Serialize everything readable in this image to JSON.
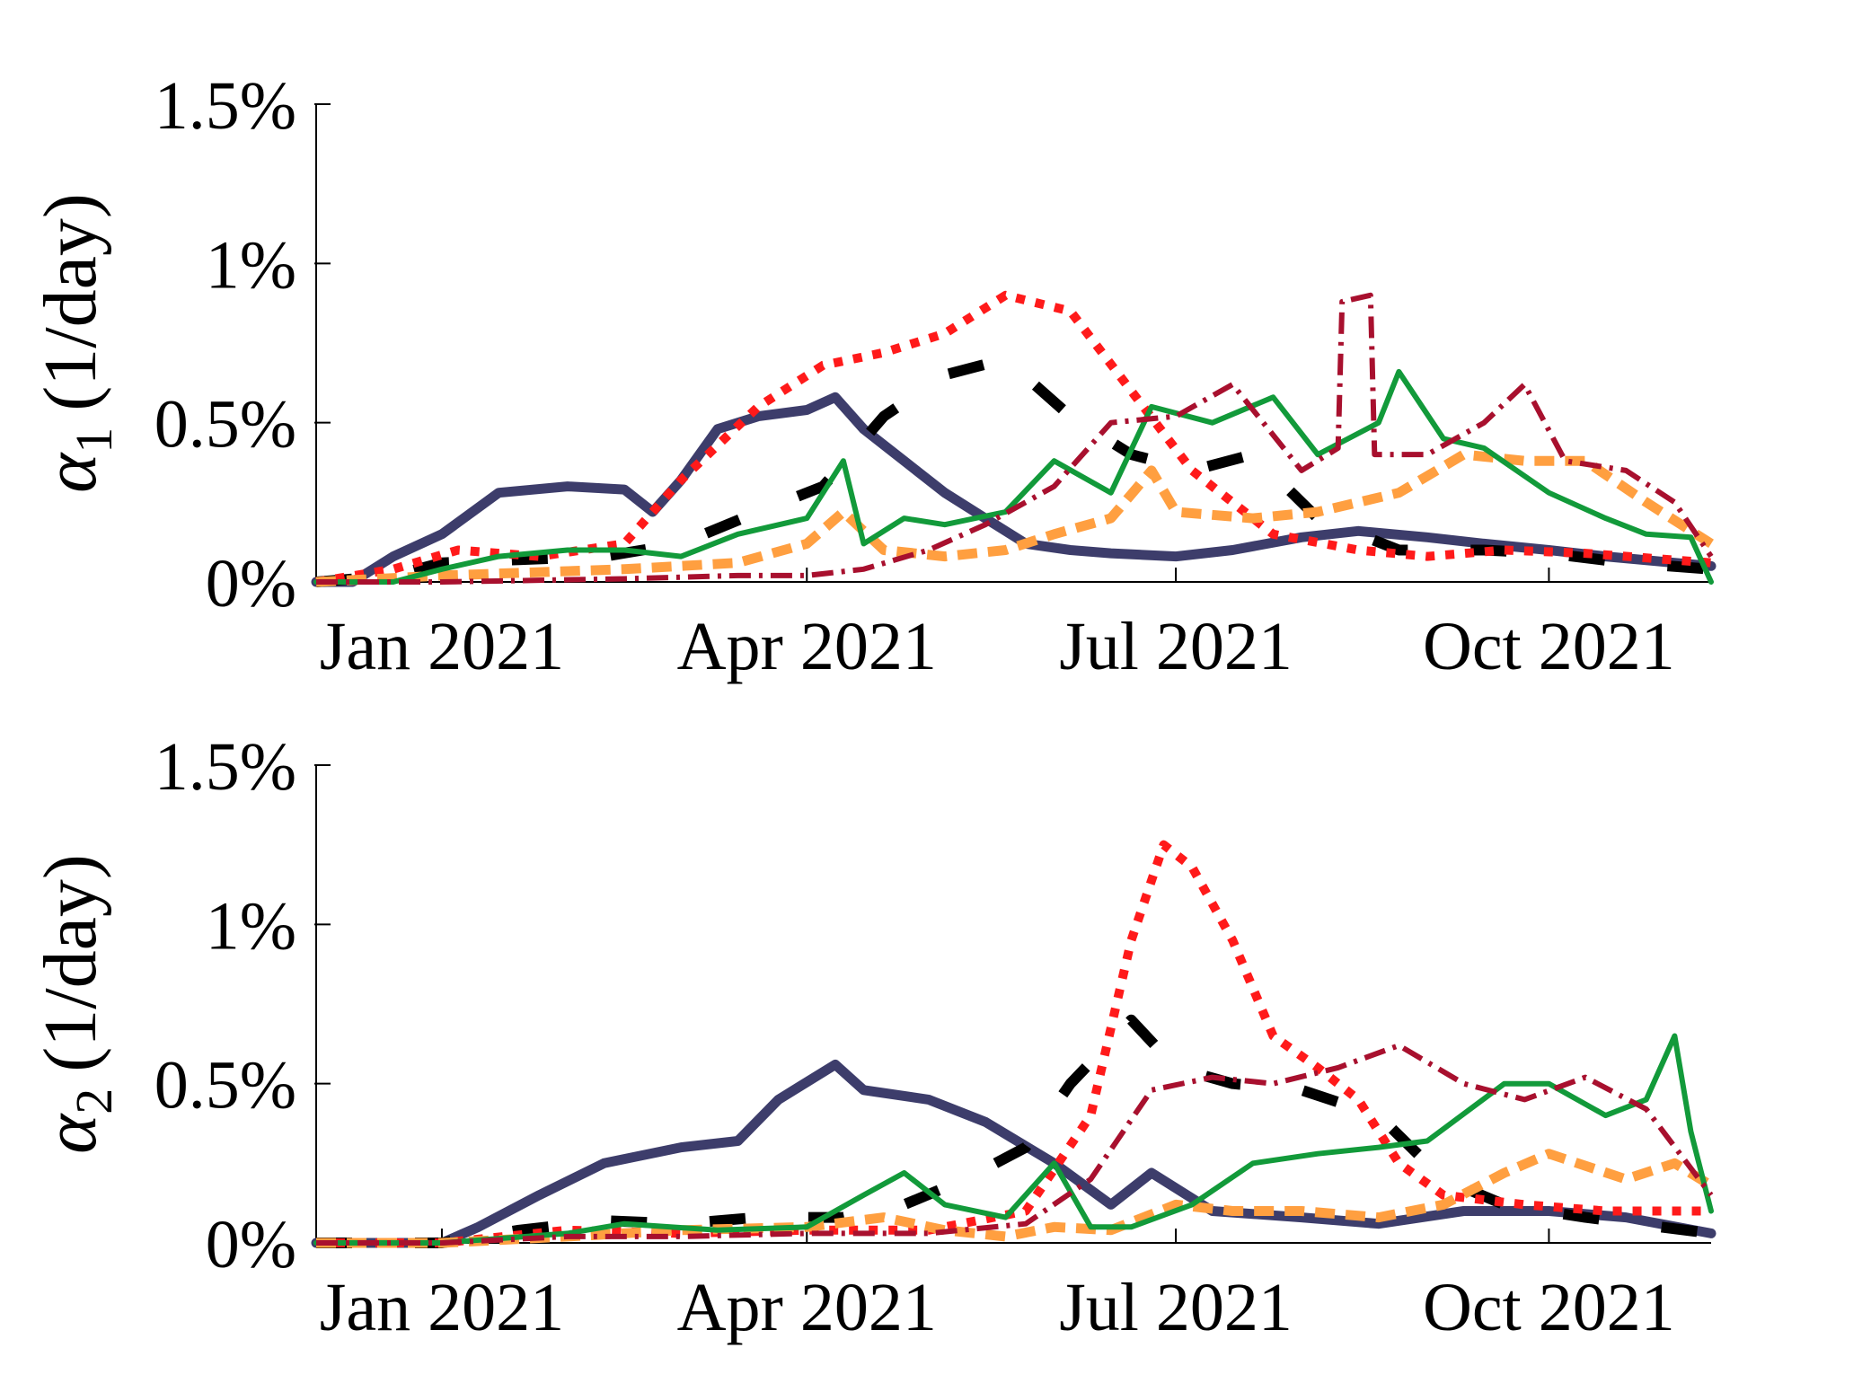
{
  "colors": {
    "navy": "#3d3d6b",
    "black": "#000000",
    "red": "#ff1a1a",
    "orange": "#ff9f40",
    "green": "#129a3a",
    "crimson": "#a8102e"
  },
  "chart_data": [
    {
      "type": "line",
      "ylabel_symbol": "α",
      "ylabel_subscript": "1",
      "ylabel_unit": "(1/day)",
      "xlim": [
        "2020-12-01",
        "2021-11-10"
      ],
      "ylim": [
        0,
        1.5
      ],
      "yticks": [
        0,
        0.5,
        1,
        1.5
      ],
      "ytick_labels": [
        "0%",
        "0.5%",
        "1%",
        "1.5%"
      ],
      "xticks": [
        "2021-01-01",
        "2021-04-01",
        "2021-07-01",
        "2021-10-01"
      ],
      "xtick_labels": [
        "Jan 2021",
        "Apr 2021",
        "Jul 2021",
        "Oct 2021"
      ],
      "series": [
        {
          "style": "solid-thick",
          "color": "navy",
          "x": [
            "2020-12-01",
            "2020-12-10",
            "2020-12-20",
            "2021-01-01",
            "2021-01-15",
            "2021-02-01",
            "2021-02-15",
            "2021-02-22",
            "2021-03-01",
            "2021-03-10",
            "2021-03-20",
            "2021-04-01",
            "2021-04-08",
            "2021-04-15",
            "2021-04-25",
            "2021-05-05",
            "2021-05-15",
            "2021-05-25",
            "2021-06-05",
            "2021-06-15",
            "2021-07-01",
            "2021-07-15",
            "2021-08-01",
            "2021-08-15",
            "2021-09-01",
            "2021-09-15",
            "2021-10-01",
            "2021-10-15",
            "2021-11-01",
            "2021-11-10"
          ],
          "y": [
            0,
            0,
            0.08,
            0.15,
            0.28,
            0.3,
            0.29,
            0.22,
            0.32,
            0.48,
            0.52,
            0.54,
            0.58,
            0.48,
            0.38,
            0.28,
            0.2,
            0.12,
            0.1,
            0.09,
            0.08,
            0.1,
            0.14,
            0.16,
            0.14,
            0.12,
            0.1,
            0.08,
            0.06,
            0.05
          ]
        },
        {
          "style": "long-dash",
          "color": "black",
          "x": [
            "2020-12-01",
            "2020-12-20",
            "2021-01-01",
            "2021-01-20",
            "2021-02-10",
            "2021-03-01",
            "2021-03-20",
            "2021-04-05",
            "2021-04-20",
            "2021-05-05",
            "2021-05-20",
            "2021-06-05",
            "2021-06-20",
            "2021-07-05",
            "2021-07-20",
            "2021-08-05",
            "2021-08-25",
            "2021-09-15",
            "2021-10-01",
            "2021-10-20",
            "2021-11-10"
          ],
          "y": [
            0,
            0.02,
            0.06,
            0.07,
            0.08,
            0.12,
            0.22,
            0.3,
            0.52,
            0.65,
            0.7,
            0.52,
            0.4,
            0.35,
            0.4,
            0.2,
            0.1,
            0.1,
            0.09,
            0.06,
            0.04
          ]
        },
        {
          "style": "dotted",
          "color": "red",
          "x": [
            "2020-12-01",
            "2020-12-20",
            "2021-01-05",
            "2021-01-25",
            "2021-02-15",
            "2021-03-01",
            "2021-03-20",
            "2021-04-05",
            "2021-04-20",
            "2021-05-05",
            "2021-05-20",
            "2021-06-05",
            "2021-06-20",
            "2021-07-05",
            "2021-07-25",
            "2021-08-15",
            "2021-09-01",
            "2021-09-20",
            "2021-10-10",
            "2021-11-10"
          ],
          "y": [
            0,
            0.04,
            0.1,
            0.08,
            0.12,
            0.32,
            0.55,
            0.68,
            0.72,
            0.78,
            0.9,
            0.85,
            0.6,
            0.35,
            0.15,
            0.1,
            0.08,
            0.1,
            0.09,
            0.06
          ]
        },
        {
          "style": "dashed-thick",
          "color": "orange",
          "x": [
            "2020-12-01",
            "2021-01-01",
            "2021-02-15",
            "2021-03-15",
            "2021-04-01",
            "2021-04-10",
            "2021-04-20",
            "2021-05-05",
            "2021-05-20",
            "2021-06-01",
            "2021-06-15",
            "2021-06-25",
            "2021-07-01",
            "2021-07-20",
            "2021-08-05",
            "2021-08-25",
            "2021-09-10",
            "2021-09-25",
            "2021-10-10",
            "2021-10-25",
            "2021-11-10"
          ],
          "y": [
            0,
            0.02,
            0.04,
            0.06,
            0.12,
            0.22,
            0.1,
            0.08,
            0.1,
            0.15,
            0.2,
            0.35,
            0.22,
            0.2,
            0.22,
            0.28,
            0.4,
            0.38,
            0.38,
            0.25,
            0.12
          ]
        },
        {
          "style": "solid",
          "color": "green",
          "x": [
            "2020-12-01",
            "2020-12-20",
            "2021-01-01",
            "2021-01-15",
            "2021-02-01",
            "2021-02-15",
            "2021-03-01",
            "2021-03-15",
            "2021-04-01",
            "2021-04-10",
            "2021-04-15",
            "2021-04-25",
            "2021-05-05",
            "2021-05-20",
            "2021-06-01",
            "2021-06-15",
            "2021-06-25",
            "2021-07-10",
            "2021-07-25",
            "2021-08-05",
            "2021-08-20",
            "2021-08-25",
            "2021-09-05",
            "2021-09-15",
            "2021-10-01",
            "2021-10-15",
            "2021-10-25",
            "2021-11-05",
            "2021-11-10"
          ],
          "y": [
            0,
            0,
            0.04,
            0.08,
            0.1,
            0.1,
            0.08,
            0.15,
            0.2,
            0.38,
            0.12,
            0.2,
            0.18,
            0.22,
            0.38,
            0.28,
            0.55,
            0.5,
            0.58,
            0.4,
            0.5,
            0.66,
            0.45,
            0.42,
            0.28,
            0.2,
            0.15,
            0.14,
            0
          ]
        },
        {
          "style": "dash-dot",
          "color": "crimson",
          "x": [
            "2020-12-01",
            "2021-01-01",
            "2021-02-15",
            "2021-03-15",
            "2021-04-01",
            "2021-04-15",
            "2021-05-01",
            "2021-05-15",
            "2021-06-01",
            "2021-06-15",
            "2021-07-01",
            "2021-07-15",
            "2021-08-01",
            "2021-08-10",
            "2021-08-11",
            "2021-08-18",
            "2021-08-19",
            "2021-09-01",
            "2021-09-15",
            "2021-09-25",
            "2021-10-05",
            "2021-10-20",
            "2021-11-01",
            "2021-11-10"
          ],
          "y": [
            0,
            0,
            0.01,
            0.02,
            0.02,
            0.04,
            0.1,
            0.18,
            0.3,
            0.5,
            0.52,
            0.62,
            0.35,
            0.42,
            0.88,
            0.9,
            0.4,
            0.4,
            0.5,
            0.62,
            0.38,
            0.35,
            0.25,
            0.08
          ]
        }
      ]
    },
    {
      "type": "line",
      "ylabel_symbol": "α",
      "ylabel_subscript": "2",
      "ylabel_unit": "(1/day)",
      "xlim": [
        "2020-12-01",
        "2021-11-10"
      ],
      "ylim": [
        0,
        1.5
      ],
      "yticks": [
        0,
        0.5,
        1,
        1.5
      ],
      "ytick_labels": [
        "0%",
        "0.5%",
        "1%",
        "1.5%"
      ],
      "xticks": [
        "2021-01-01",
        "2021-04-01",
        "2021-07-01",
        "2021-10-01"
      ],
      "xtick_labels": [
        "Jan 2021",
        "Apr 2021",
        "Jul 2021",
        "Oct 2021"
      ],
      "series": [
        {
          "style": "solid-thick",
          "color": "navy",
          "x": [
            "2020-12-01",
            "2021-01-01",
            "2021-01-10",
            "2021-01-25",
            "2021-02-10",
            "2021-03-01",
            "2021-03-15",
            "2021-03-25",
            "2021-04-08",
            "2021-04-15",
            "2021-05-01",
            "2021-05-15",
            "2021-06-01",
            "2021-06-15",
            "2021-06-25",
            "2021-07-10",
            "2021-08-01",
            "2021-08-20",
            "2021-09-10",
            "2021-10-01",
            "2021-10-20",
            "2021-11-10"
          ],
          "y": [
            0,
            0,
            0.05,
            0.15,
            0.25,
            0.3,
            0.32,
            0.45,
            0.56,
            0.48,
            0.45,
            0.38,
            0.25,
            0.12,
            0.22,
            0.1,
            0.08,
            0.06,
            0.1,
            0.1,
            0.08,
            0.03
          ]
        },
        {
          "style": "long-dash",
          "color": "black",
          "x": [
            "2020-12-01",
            "2021-01-01",
            "2021-01-20",
            "2021-02-10",
            "2021-03-01",
            "2021-03-20",
            "2021-04-10",
            "2021-04-25",
            "2021-05-10",
            "2021-05-25",
            "2021-06-05",
            "2021-06-20",
            "2021-07-01",
            "2021-07-15",
            "2021-08-01",
            "2021-08-20",
            "2021-09-05",
            "2021-09-20",
            "2021-10-10",
            "2021-11-10"
          ],
          "y": [
            0,
            0,
            0.04,
            0.07,
            0.06,
            0.08,
            0.08,
            0.12,
            0.2,
            0.3,
            0.5,
            0.7,
            0.55,
            0.5,
            0.48,
            0.4,
            0.2,
            0.12,
            0.08,
            0.03
          ]
        },
        {
          "style": "dotted",
          "color": "red",
          "x": [
            "2020-12-01",
            "2021-01-01",
            "2021-02-01",
            "2021-03-01",
            "2021-04-01",
            "2021-05-01",
            "2021-05-25",
            "2021-06-10",
            "2021-06-20",
            "2021-06-28",
            "2021-07-05",
            "2021-07-15",
            "2021-07-25",
            "2021-08-05",
            "2021-08-15",
            "2021-08-25",
            "2021-09-05",
            "2021-09-25",
            "2021-10-15",
            "2021-11-10"
          ],
          "y": [
            0,
            0,
            0.04,
            0.03,
            0.04,
            0.04,
            0.1,
            0.4,
            0.95,
            1.25,
            1.18,
            0.95,
            0.65,
            0.55,
            0.45,
            0.25,
            0.15,
            0.12,
            0.1,
            0.1
          ]
        },
        {
          "style": "dashed-thick",
          "color": "orange",
          "x": [
            "2020-12-01",
            "2021-01-01",
            "2021-02-01",
            "2021-03-01",
            "2021-04-01",
            "2021-04-20",
            "2021-05-05",
            "2021-05-20",
            "2021-06-01",
            "2021-06-15",
            "2021-07-01",
            "2021-07-15",
            "2021-08-01",
            "2021-08-20",
            "2021-09-05",
            "2021-09-20",
            "2021-10-01",
            "2021-10-20",
            "2021-11-01",
            "2021-11-10"
          ],
          "y": [
            0,
            0,
            0.02,
            0.04,
            0.05,
            0.08,
            0.04,
            0.02,
            0.05,
            0.04,
            0.12,
            0.1,
            0.1,
            0.08,
            0.12,
            0.22,
            0.28,
            0.2,
            0.25,
            0.18
          ]
        },
        {
          "style": "solid",
          "color": "green",
          "x": [
            "2020-12-01",
            "2021-01-01",
            "2021-02-01",
            "2021-02-15",
            "2021-03-10",
            "2021-04-01",
            "2021-04-15",
            "2021-04-25",
            "2021-05-05",
            "2021-05-20",
            "2021-06-01",
            "2021-06-10",
            "2021-06-20",
            "2021-07-05",
            "2021-07-20",
            "2021-08-05",
            "2021-08-20",
            "2021-09-01",
            "2021-09-20",
            "2021-10-01",
            "2021-10-15",
            "2021-10-25",
            "2021-11-01",
            "2021-11-05",
            "2021-11-10"
          ],
          "y": [
            0,
            0,
            0.03,
            0.06,
            0.04,
            0.05,
            0.15,
            0.22,
            0.12,
            0.08,
            0.25,
            0.05,
            0.05,
            0.12,
            0.25,
            0.28,
            0.3,
            0.32,
            0.5,
            0.5,
            0.4,
            0.45,
            0.65,
            0.35,
            0.1
          ]
        },
        {
          "style": "dash-dot",
          "color": "crimson",
          "x": [
            "2020-12-01",
            "2021-01-01",
            "2021-02-01",
            "2021-03-01",
            "2021-04-01",
            "2021-05-01",
            "2021-05-25",
            "2021-06-10",
            "2021-06-25",
            "2021-07-10",
            "2021-07-25",
            "2021-08-10",
            "2021-08-25",
            "2021-09-10",
            "2021-09-25",
            "2021-10-10",
            "2021-10-25",
            "2021-11-10"
          ],
          "y": [
            0,
            0,
            0.02,
            0.02,
            0.03,
            0.03,
            0.06,
            0.2,
            0.48,
            0.52,
            0.5,
            0.55,
            0.62,
            0.5,
            0.45,
            0.52,
            0.42,
            0.15
          ]
        }
      ]
    }
  ]
}
